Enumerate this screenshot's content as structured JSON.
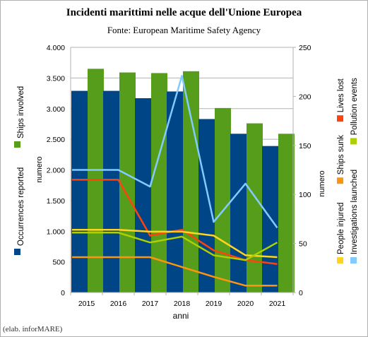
{
  "chart_data": {
    "type": "bar",
    "title": "Incidenti marittimi nelle acque dell'Unione Europea",
    "subtitle": "Fonte: European Maritime Safety Agency",
    "xlabel": "anni",
    "ylabel_left": "numero",
    "ylabel_right": "numero",
    "credit": "(elab. inforMARE)",
    "categories": [
      "2015",
      "2016",
      "2017",
      "2018",
      "2019",
      "2020",
      "2021"
    ],
    "y_left": {
      "lim": [
        0,
        4000
      ],
      "ticks": [
        0,
        500,
        1000,
        1500,
        2000,
        2500,
        3000,
        3500,
        4000
      ],
      "tick_labels": [
        "0",
        "500",
        "1.000",
        "1.500",
        "2.000",
        "2.500",
        "3.000",
        "3.500",
        "4.000"
      ]
    },
    "y_right": {
      "lim": [
        0,
        250
      ],
      "ticks": [
        0,
        50,
        100,
        150,
        200,
        250
      ],
      "tick_labels": [
        "0",
        "50",
        "100",
        "150",
        "200",
        "250"
      ]
    },
    "bars": [
      {
        "name": "Occurrences reported",
        "axis": "left",
        "color": "#004586",
        "values": [
          3290,
          3290,
          3170,
          3280,
          2830,
          2590,
          2390
        ]
      },
      {
        "name": "Ships involved",
        "axis": "left",
        "color": "#579d1c",
        "values": [
          3650,
          3590,
          3580,
          3610,
          3010,
          2760,
          2590
        ]
      }
    ],
    "lines": [
      {
        "name": "Lives lost",
        "axis": "right",
        "color": "#ff420e",
        "values": [
          115,
          115,
          58,
          64,
          43,
          33,
          29
        ]
      },
      {
        "name": "Ships sunk",
        "axis": "right",
        "color": "#ff950e",
        "values": [
          36,
          36,
          36,
          26,
          16,
          7,
          7
        ]
      },
      {
        "name": "People injured",
        "axis": "right",
        "color": "#ffd320",
        "values": [
          64,
          64,
          62,
          62,
          58,
          38,
          36
        ]
      },
      {
        "name": "Investigations launched",
        "axis": "right",
        "color": "#83caff",
        "values": [
          125,
          125,
          108,
          221,
          72,
          111,
          66
        ]
      },
      {
        "name": "Pollution events",
        "axis": "right",
        "color": "#aecf00",
        "values": [
          61,
          61,
          51,
          57,
          38,
          33,
          51
        ]
      }
    ],
    "legend_left": [
      "Ships involved",
      "Occurrences reported"
    ],
    "legend_right_col1": [
      "Lives lost",
      "Ships sunk",
      "People injured"
    ],
    "legend_right_col2": [
      "Pollution events",
      "Investigations launched"
    ]
  }
}
